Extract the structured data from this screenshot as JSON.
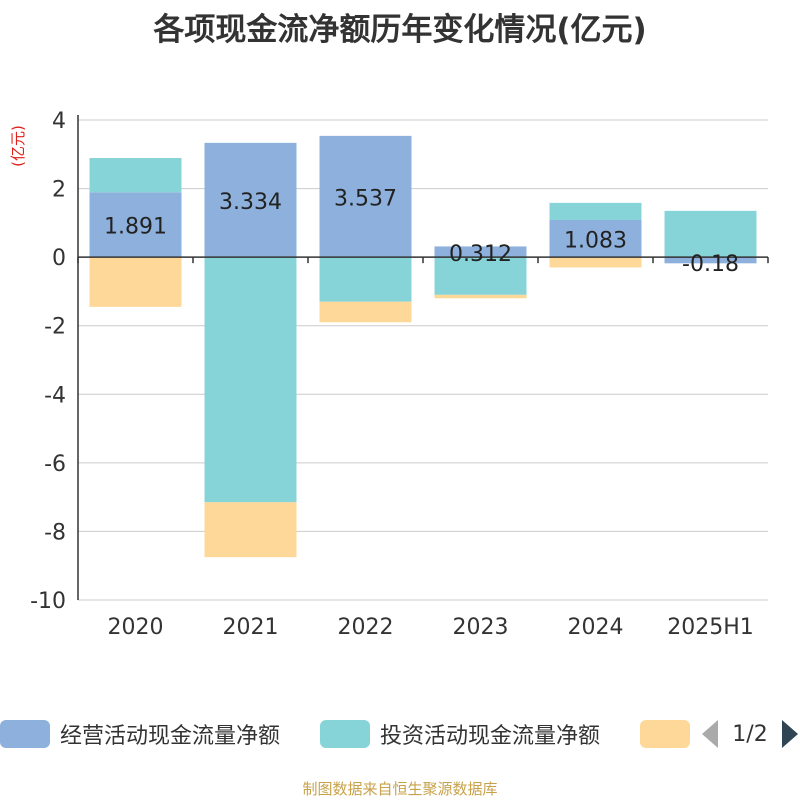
{
  "title": "各项现金流净额历年变化情况(亿元)",
  "source_note": "制图数据来自恒生聚源数据库",
  "legend": {
    "items": [
      {
        "label": "经营活动现金流量净额",
        "color": "#8eb0dc"
      },
      {
        "label": "投资活动现金流量净额",
        "color": "#87d4d8"
      },
      {
        "label": "",
        "color": "#fed898"
      }
    ],
    "page_label": "1/2"
  },
  "chart_data": {
    "type": "bar",
    "stacked": true,
    "ylabel": "(亿元)",
    "ylim": [
      -10,
      4
    ],
    "yticks": [
      4,
      2,
      0,
      -2,
      -4,
      -6,
      -8,
      -10
    ],
    "grid": true,
    "legend_position": "bottom",
    "categories": [
      "2020",
      "2021",
      "2022",
      "2023",
      "2024",
      "2025H1"
    ],
    "series": [
      {
        "name": "经营活动现金流量净额",
        "color": "#8eb0dc",
        "values": [
          1.891,
          3.334,
          3.537,
          0.312,
          1.083,
          -0.18
        ]
      },
      {
        "name": "投资活动现金流量净额",
        "color": "#87d4d8",
        "values": [
          1.0,
          -7.15,
          -1.3,
          -1.1,
          0.5,
          1.35
        ]
      },
      {
        "color": "#fed898",
        "values": [
          -1.45,
          -1.6,
          -0.6,
          -0.1,
          -0.3,
          0
        ]
      }
    ],
    "data_labels": [
      "1.891",
      "3.334",
      "3.537",
      "0.312",
      "1.083",
      "-0.18"
    ]
  }
}
